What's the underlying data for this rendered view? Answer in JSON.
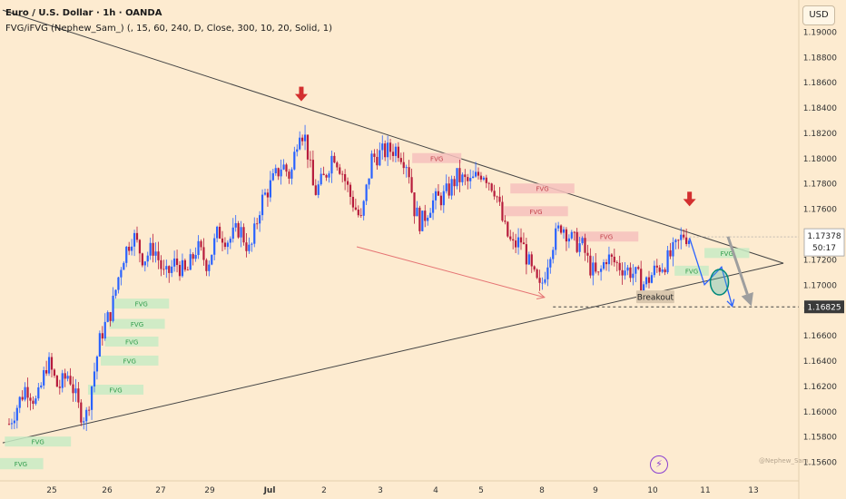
{
  "header": {
    "title": "Euro / U.S. Dollar · 1h · OANDA",
    "indicator": "FVG/iFVG (Nephew_Sam_) (, 15, 60, 240, D, Close, 300, 10, 20, Solid, 1)",
    "currency_button": "USD"
  },
  "watermark": "@Nephew_Sam_",
  "colors": {
    "background": "#fdebd0",
    "up": "#2962ff",
    "down": "#b71c3c",
    "fvg_green": "#c8ebc4",
    "fvg_red": "#f6c1bd",
    "trendline": "#444444",
    "arrow_red": "#d32f2f",
    "projection": "#2962ff"
  },
  "chart_data": {
    "type": "candlestick",
    "symbol": "EURUSD",
    "timeframe": "1h",
    "ylim": [
      1.1545,
      1.1925
    ],
    "y_ticks": [
      "1.19000",
      "1.18800",
      "1.18600",
      "1.18400",
      "1.18200",
      "1.18000",
      "1.17800",
      "1.17600",
      "1.17400",
      "1.17200",
      "1.17000",
      "1.16800",
      "1.16600",
      "1.16400",
      "1.16200",
      "1.16000",
      "1.15800",
      "1.15600"
    ],
    "x_ticks": [
      "25",
      "26",
      "27",
      "29",
      "Jul",
      "2",
      "3",
      "4",
      "5",
      "8",
      "9",
      "10",
      "11",
      "13"
    ],
    "price_labels": {
      "current_price": "1.17378",
      "countdown": "50:17",
      "breakout_level": "1.16825"
    },
    "path": [
      {
        "t": 0,
        "p": 1.159
      },
      {
        "t": 0.8,
        "p": 1.162
      },
      {
        "t": 1.3,
        "p": 1.1606
      },
      {
        "t": 1.8,
        "p": 1.164
      },
      {
        "t": 2.3,
        "p": 1.1618
      },
      {
        "t": 2.8,
        "p": 1.163
      },
      {
        "t": 3.3,
        "p": 1.16
      },
      {
        "t": 3.6,
        "p": 1.1595
      },
      {
        "t": 4.3,
        "p": 1.166
      },
      {
        "t": 4.8,
        "p": 1.168
      },
      {
        "t": 5.3,
        "p": 1.172
      },
      {
        "t": 5.8,
        "p": 1.174
      },
      {
        "t": 6.3,
        "p": 1.172
      },
      {
        "t": 6.8,
        "p": 1.173
      },
      {
        "t": 7.3,
        "p": 1.1705
      },
      {
        "t": 7.8,
        "p": 1.1718
      },
      {
        "t": 8.3,
        "p": 1.1708
      },
      {
        "t": 8.8,
        "p": 1.173
      },
      {
        "t": 9.3,
        "p": 1.1716
      },
      {
        "t": 9.8,
        "p": 1.1742
      },
      {
        "t": 10.3,
        "p": 1.1735
      },
      {
        "t": 10.8,
        "p": 1.1745
      },
      {
        "t": 11.3,
        "p": 1.1725
      },
      {
        "t": 11.8,
        "p": 1.1765
      },
      {
        "t": 12.3,
        "p": 1.178
      },
      {
        "t": 12.8,
        "p": 1.1795
      },
      {
        "t": 13.2,
        "p": 1.1785
      },
      {
        "t": 13.6,
        "p": 1.1825
      },
      {
        "t": 13.9,
        "p": 1.1815
      },
      {
        "t": 14.3,
        "p": 1.1772
      },
      {
        "t": 14.8,
        "p": 1.1785
      },
      {
        "t": 15.2,
        "p": 1.1805
      },
      {
        "t": 15.6,
        "p": 1.179
      },
      {
        "t": 16.0,
        "p": 1.177
      },
      {
        "t": 16.5,
        "p": 1.175
      },
      {
        "t": 17.0,
        "p": 1.18
      },
      {
        "t": 17.6,
        "p": 1.1805
      },
      {
        "t": 18.2,
        "p": 1.1808
      },
      {
        "t": 18.7,
        "p": 1.1795
      },
      {
        "t": 19.0,
        "p": 1.176
      },
      {
        "t": 19.3,
        "p": 1.1748
      },
      {
        "t": 19.8,
        "p": 1.1765
      },
      {
        "t": 20.4,
        "p": 1.177
      },
      {
        "t": 21.0,
        "p": 1.1785
      },
      {
        "t": 21.6,
        "p": 1.178
      },
      {
        "t": 22.2,
        "p": 1.179
      },
      {
        "t": 22.8,
        "p": 1.1775
      },
      {
        "t": 23.2,
        "p": 1.1745
      },
      {
        "t": 23.6,
        "p": 1.173
      },
      {
        "t": 24.0,
        "p": 1.1735
      },
      {
        "t": 24.5,
        "p": 1.171
      },
      {
        "t": 24.9,
        "p": 1.1695
      },
      {
        "t": 25.4,
        "p": 1.173
      },
      {
        "t": 25.9,
        "p": 1.1748
      },
      {
        "t": 26.4,
        "p": 1.1735
      },
      {
        "t": 26.9,
        "p": 1.173
      },
      {
        "t": 27.2,
        "p": 1.1715
      },
      {
        "t": 27.6,
        "p": 1.1705
      },
      {
        "t": 28.0,
        "p": 1.1722
      },
      {
        "t": 28.6,
        "p": 1.1715
      },
      {
        "t": 29.2,
        "p": 1.171
      },
      {
        "t": 29.8,
        "p": 1.17
      },
      {
        "t": 30.3,
        "p": 1.1712
      },
      {
        "t": 30.8,
        "p": 1.1718
      },
      {
        "t": 31.3,
        "p": 1.173
      },
      {
        "t": 31.6,
        "p": 1.174
      },
      {
        "t": 31.9,
        "p": 1.1737
      }
    ],
    "fvg_zones": [
      {
        "label": "FVG",
        "kind": "bullish",
        "t0": -0.5,
        "t1": 1.6,
        "y0": 1.1563,
        "y1": 1.1557
      },
      {
        "label": "FVG",
        "kind": "bullish",
        "t0": -0.2,
        "t1": 2.9,
        "y0": 1.158,
        "y1": 1.1575
      },
      {
        "label": "FVG",
        "kind": "bullish",
        "t0": 3.7,
        "t1": 6.3,
        "y0": 1.1621,
        "y1": 1.1616
      },
      {
        "label": "FVG",
        "kind": "bullish",
        "t0": 4.3,
        "t1": 7.0,
        "y0": 1.1644,
        "y1": 1.1639
      },
      {
        "label": "FVG",
        "kind": "bullish",
        "t0": 4.5,
        "t1": 7.0,
        "y0": 1.1659,
        "y1": 1.1654
      },
      {
        "label": "FVG",
        "kind": "bullish",
        "t0": 4.7,
        "t1": 7.3,
        "y0": 1.1673,
        "y1": 1.1668
      },
      {
        "label": "FVG",
        "kind": "bullish",
        "t0": 4.9,
        "t1": 7.5,
        "y0": 1.1689,
        "y1": 1.1684
      },
      {
        "label": "FVG",
        "kind": "bearish",
        "t0": 18.9,
        "t1": 21.2,
        "y0": 1.1804,
        "y1": 1.1799
      },
      {
        "label": "FVG",
        "kind": "bearish",
        "t0": 23.5,
        "t1": 26.5,
        "y0": 1.178,
        "y1": 1.1775
      },
      {
        "label": "FVG",
        "kind": "bearish",
        "t0": 23.2,
        "t1": 26.2,
        "y0": 1.1762,
        "y1": 1.1757
      },
      {
        "label": "FVG",
        "kind": "bearish",
        "t0": 26.5,
        "t1": 29.5,
        "y0": 1.1742,
        "y1": 1.1737
      },
      {
        "label": "FVG",
        "kind": "bullish",
        "t0": 32.6,
        "t1": 34.7,
        "y0": 1.1729,
        "y1": 1.1724
      },
      {
        "label": "FVG",
        "kind": "bullish",
        "t0": 31.2,
        "t1": 32.8,
        "y0": 1.1715,
        "y1": 1.171
      }
    ],
    "annotations": {
      "upper_trendline": {
        "from": {
          "t": -0.3,
          "p": 1.1917
        },
        "to": {
          "t": 36.3,
          "p": 1.1717
        }
      },
      "lower_trendline": {
        "from": {
          "t": -0.3,
          "p": 1.1575
        },
        "to": {
          "t": 36.3,
          "p": 1.1717
        }
      },
      "down_arrows": [
        {
          "t": 13.7,
          "p": 1.1845
        },
        {
          "t": 31.9,
          "p": 1.1762
        }
      ],
      "diagonal_arrow": {
        "from": {
          "t": 16.3,
          "p": 1.173
        },
        "to": {
          "t": 25.1,
          "p": 1.169
        }
      },
      "projection_path": [
        {
          "t": 31.9,
          "p": 1.1737
        },
        {
          "t": 32.6,
          "p": 1.17
        },
        {
          "t": 33.4,
          "p": 1.1714
        },
        {
          "t": 33.9,
          "p": 1.1683
        }
      ],
      "gray_arrow": {
        "from": {
          "t": 33.7,
          "p": 1.1738
        },
        "to": {
          "t": 34.8,
          "p": 1.1683
        }
      },
      "breakout_circle": {
        "t": 33.3,
        "p": 1.1702
      },
      "breakout_label": "Breakout",
      "breakout_price": 1.16825
    }
  }
}
